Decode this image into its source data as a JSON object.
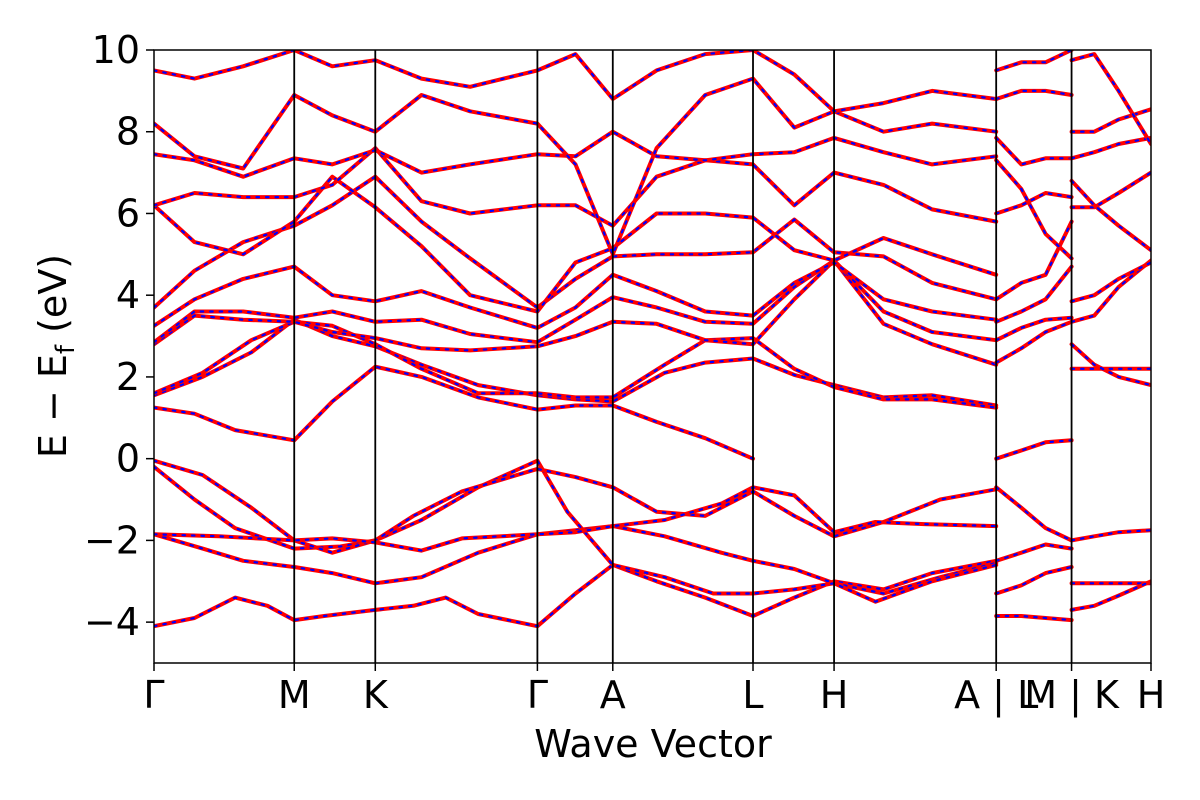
{
  "chart_data": {
    "type": "line",
    "xlabel": "Wave Vector",
    "ylabel_parts": [
      "E − E",
      "f",
      " (eV)"
    ],
    "ylim": [
      -5,
      10
    ],
    "yticks": [
      -4,
      -2,
      0,
      2,
      4,
      6,
      8,
      10
    ],
    "ytick_labels": [
      "−4",
      "−2",
      "0",
      "2",
      "4",
      "6",
      "8",
      "10"
    ],
    "xlim": [
      0,
      12.3
    ],
    "kpoints": [
      {
        "label": "Γ",
        "x": 0
      },
      {
        "label": "M",
        "x": 1.73
      },
      {
        "label": "K",
        "x": 2.73
      },
      {
        "label": "Γ",
        "x": 4.73
      },
      {
        "label": "A",
        "x": 5.66
      },
      {
        "label": "L",
        "x": 7.39
      },
      {
        "label": "H",
        "x": 8.39
      },
      {
        "label": "A | L",
        "x": 10.39
      },
      {
        "label": "M | K",
        "x": 11.32
      },
      {
        "label": "H",
        "x": 12.3
      }
    ],
    "series_colors": {
      "solid": "#ff0000",
      "dashed": "#0000ff"
    },
    "bands": [
      {
        "x": [
          0,
          0.5,
          1.0,
          1.4,
          1.73,
          2.1,
          2.73,
          3.2,
          3.6,
          4.0,
          4.73,
          5.2,
          5.66,
          6.2,
          6.8,
          7.39,
          7.9,
          8.39,
          9.0,
          9.6,
          10.39
        ],
        "y": [
          -4.1,
          -3.9,
          -3.4,
          -3.6,
          -3.95,
          -3.85,
          -3.7,
          -3.6,
          -3.4,
          -3.8,
          -4.1,
          -3.3,
          -2.6,
          -3.0,
          -3.4,
          -3.85,
          -3.4,
          -3.0,
          -3.2,
          -2.8,
          -2.5
        ]
      },
      {
        "x": [
          0,
          0.6,
          1.1,
          1.73,
          2.2,
          2.73,
          3.3,
          4.0,
          4.73,
          5.2,
          5.66,
          6.3,
          7.0,
          7.39,
          7.9,
          8.39,
          9.0,
          9.7,
          10.39
        ],
        "y": [
          -1.85,
          -2.2,
          -2.5,
          -2.65,
          -2.8,
          -3.05,
          -2.9,
          -2.3,
          -1.85,
          -1.75,
          -1.65,
          -1.9,
          -2.3,
          -2.5,
          -2.7,
          -3.05,
          -3.3,
          -2.9,
          -2.55
        ]
      },
      {
        "x": [
          0,
          0.5,
          1.0,
          1.73,
          2.3,
          2.73,
          3.3,
          4.0,
          4.73,
          5.1,
          5.66,
          6.3,
          6.9,
          7.39,
          7.9,
          8.39,
          8.9,
          9.6,
          10.39
        ],
        "y": [
          -0.2,
          -1.0,
          -1.7,
          -2.2,
          -2.15,
          -2.0,
          -1.5,
          -0.7,
          -0.05,
          -1.3,
          -2.6,
          -2.9,
          -3.3,
          -3.3,
          -3.2,
          -3.05,
          -3.5,
          -3.0,
          -2.6
        ]
      },
      {
        "x": [
          0,
          0.6,
          1.2,
          1.73,
          2.2,
          2.73,
          3.2,
          3.8,
          4.73,
          5.2,
          5.66,
          6.2,
          6.8,
          7.39,
          7.9,
          8.39,
          9.0,
          9.7,
          10.39
        ],
        "y": [
          -0.05,
          -0.4,
          -1.2,
          -2.0,
          -2.3,
          -2.0,
          -1.4,
          -0.8,
          -0.25,
          -0.45,
          -0.7,
          -1.3,
          -1.4,
          -0.8,
          -1.4,
          -1.9,
          -1.55,
          -1.0,
          -0.75
        ]
      },
      {
        "x": [
          0,
          0.8,
          1.73,
          2.2,
          2.73,
          3.3,
          3.8,
          4.73,
          5.2,
          5.66,
          6.3,
          7.0,
          7.39,
          7.9,
          8.39,
          8.9,
          9.5,
          10.39
        ],
        "y": [
          -1.85,
          -1.9,
          -2.0,
          -1.95,
          -2.05,
          -2.25,
          -1.95,
          -1.85,
          -1.8,
          -1.65,
          -1.5,
          -1.1,
          -0.7,
          -0.9,
          -1.8,
          -1.55,
          -1.6,
          -1.65
        ]
      },
      {
        "x": [
          0,
          0.5,
          1.0,
          1.73,
          2.2,
          2.73,
          3.3,
          4.0,
          4.73,
          5.2,
          5.66,
          6.2,
          6.8,
          7.39
        ],
        "y": [
          1.25,
          1.1,
          0.7,
          0.45,
          1.4,
          2.25,
          2.0,
          1.5,
          1.2,
          1.3,
          1.3,
          0.9,
          0.5,
          0.0
        ]
      },
      {
        "x": [
          0,
          0.6,
          1.2,
          1.73,
          2.2,
          2.73,
          3.3,
          4.0,
          4.73,
          5.2,
          5.66,
          6.3,
          6.8,
          7.39,
          7.9,
          8.39,
          9.0,
          9.6,
          10.39
        ],
        "y": [
          1.55,
          2.0,
          2.6,
          3.4,
          3.0,
          2.75,
          2.3,
          1.8,
          1.55,
          1.45,
          1.4,
          2.1,
          2.35,
          2.45,
          2.05,
          1.8,
          1.5,
          1.55,
          1.3
        ]
      },
      {
        "x": [
          0,
          0.6,
          1.2,
          1.73,
          2.2,
          2.73,
          3.3,
          4.0,
          4.73,
          5.2,
          5.66,
          6.3,
          6.8,
          7.39,
          7.9,
          8.39,
          9.0,
          9.6,
          10.39
        ],
        "y": [
          1.6,
          2.1,
          2.9,
          3.35,
          3.25,
          2.8,
          2.2,
          1.6,
          1.6,
          1.5,
          1.5,
          2.3,
          2.9,
          2.95,
          2.2,
          1.75,
          1.45,
          1.45,
          1.25
        ]
      },
      {
        "x": [
          0,
          0.5,
          1.1,
          1.73,
          2.2,
          2.73,
          3.3,
          3.9,
          4.73,
          5.2,
          5.66,
          6.2,
          6.8,
          7.39,
          7.9,
          8.39,
          9.0,
          9.6,
          10.39
        ],
        "y": [
          2.8,
          3.5,
          3.4,
          3.35,
          3.1,
          2.95,
          2.7,
          2.65,
          2.75,
          3.0,
          3.35,
          3.3,
          2.9,
          2.8,
          3.9,
          4.85,
          3.3,
          2.8,
          2.3
        ]
      },
      {
        "x": [
          0,
          0.5,
          1.1,
          1.73,
          2.2,
          2.73,
          3.3,
          3.9,
          4.73,
          5.2,
          5.66,
          6.2,
          6.8,
          7.39,
          7.9,
          8.39,
          9.0,
          9.6,
          10.39
        ],
        "y": [
          2.85,
          3.6,
          3.6,
          3.45,
          3.6,
          3.35,
          3.4,
          3.05,
          2.85,
          3.4,
          3.95,
          3.7,
          3.35,
          3.3,
          4.2,
          4.85,
          3.6,
          3.1,
          2.9
        ]
      },
      {
        "x": [
          0,
          0.5,
          1.1,
          1.73,
          2.2,
          2.73,
          3.3,
          3.9,
          4.73,
          5.2,
          5.66,
          6.2,
          6.8,
          7.39,
          7.9,
          8.39,
          9.0,
          9.6,
          10.39
        ],
        "y": [
          3.25,
          3.9,
          4.4,
          4.7,
          4.0,
          3.85,
          4.1,
          3.7,
          3.2,
          3.7,
          4.5,
          4.1,
          3.6,
          3.5,
          4.3,
          4.8,
          3.9,
          3.6,
          3.4
        ]
      },
      {
        "x": [
          0,
          0.5,
          1.1,
          1.73,
          2.2,
          2.73,
          3.3,
          3.9,
          4.73,
          5.2,
          5.66,
          6.2,
          6.8,
          7.39,
          7.9,
          8.39,
          9.0,
          9.6,
          10.39
        ],
        "y": [
          3.7,
          4.6,
          5.3,
          5.7,
          6.2,
          6.9,
          5.8,
          4.9,
          3.7,
          4.4,
          4.95,
          5.0,
          5.0,
          5.05,
          5.85,
          5.05,
          4.95,
          4.3,
          3.9
        ]
      },
      {
        "x": [
          0,
          0.5,
          1.1,
          1.73,
          2.2,
          2.73,
          3.3,
          3.9,
          4.73,
          5.2,
          5.66,
          6.2,
          6.8,
          7.39,
          7.9,
          8.39,
          9.0,
          9.6,
          10.39
        ],
        "y": [
          6.2,
          5.3,
          5.0,
          5.8,
          6.9,
          6.15,
          5.2,
          4.0,
          3.6,
          4.8,
          5.15,
          6.0,
          6.0,
          5.9,
          5.1,
          4.85,
          5.4,
          5.0,
          4.5
        ]
      },
      {
        "x": [
          0,
          0.5,
          1.1,
          1.73,
          2.2,
          2.73,
          3.3,
          3.9,
          4.73,
          5.2,
          5.66,
          6.2,
          6.8,
          7.39,
          7.9,
          8.39,
          9.0,
          9.6,
          10.39
        ],
        "y": [
          6.2,
          6.5,
          6.4,
          6.4,
          6.7,
          7.6,
          6.3,
          6.0,
          6.2,
          6.2,
          5.7,
          6.9,
          7.3,
          7.2,
          6.2,
          7.0,
          6.7,
          6.1,
          5.8
        ]
      },
      {
        "x": [
          0,
          0.5,
          1.1,
          1.73,
          2.2,
          2.73,
          3.3,
          3.9,
          4.73,
          5.2,
          5.66,
          6.2,
          6.8,
          7.39,
          7.9,
          8.39,
          9.0,
          9.6,
          10.39
        ],
        "y": [
          7.45,
          7.3,
          6.9,
          7.35,
          7.2,
          7.55,
          7.0,
          7.2,
          7.45,
          7.4,
          8.0,
          7.4,
          7.3,
          7.45,
          7.5,
          7.85,
          7.5,
          7.2,
          7.4
        ]
      },
      {
        "x": [
          0,
          0.5,
          1.1,
          1.73,
          2.2,
          2.73,
          3.3,
          3.9,
          4.73,
          5.2,
          5.66,
          6.2,
          6.8,
          7.39,
          7.9,
          8.39,
          9.0,
          9.6,
          10.39
        ],
        "y": [
          8.2,
          7.4,
          7.1,
          8.9,
          8.4,
          8.0,
          8.9,
          8.5,
          8.2,
          7.2,
          5.0,
          7.6,
          8.9,
          9.3,
          8.1,
          8.5,
          8.0,
          8.2,
          8.0
        ]
      },
      {
        "x": [
          0,
          0.5,
          1.1,
          1.73,
          2.2,
          2.73,
          3.3,
          3.9,
          4.73,
          5.2,
          5.66,
          6.2,
          6.8,
          7.39,
          7.9,
          8.39,
          9.0,
          9.6,
          10.39
        ],
        "y": [
          9.5,
          9.3,
          9.6,
          10.0,
          9.6,
          9.75,
          9.3,
          9.1,
          9.5,
          9.9,
          8.8,
          9.5,
          9.9,
          10.0,
          9.4,
          8.5,
          8.7,
          9.0,
          8.8
        ]
      },
      {
        "x": [
          10.39,
          10.7,
          11.0,
          11.32
        ],
        "y": [
          0.0,
          0.2,
          0.4,
          0.45
        ]
      },
      {
        "x": [
          10.39,
          10.7,
          11.0,
          11.32
        ],
        "y": [
          -0.7,
          -1.2,
          -1.7,
          -2.0
        ]
      },
      {
        "x": [
          10.39,
          10.7,
          11.0,
          11.32
        ],
        "y": [
          -2.5,
          -2.3,
          -2.1,
          -2.2
        ]
      },
      {
        "x": [
          10.39,
          10.7,
          11.0,
          11.32
        ],
        "y": [
          -3.3,
          -3.1,
          -2.8,
          -2.65
        ]
      },
      {
        "x": [
          10.39,
          10.7,
          11.0,
          11.32
        ],
        "y": [
          -3.85,
          -3.85,
          -3.9,
          -3.95
        ]
      },
      {
        "x": [
          10.39,
          10.7,
          11.0,
          11.32
        ],
        "y": [
          2.35,
          2.7,
          3.1,
          3.35
        ]
      },
      {
        "x": [
          10.39,
          10.7,
          11.0,
          11.32
        ],
        "y": [
          2.9,
          3.2,
          3.4,
          3.45
        ]
      },
      {
        "x": [
          10.39,
          10.7,
          11.0,
          11.32
        ],
        "y": [
          3.35,
          3.6,
          3.9,
          4.7
        ]
      },
      {
        "x": [
          10.39,
          10.7,
          11.0,
          11.32
        ],
        "y": [
          3.9,
          4.3,
          4.5,
          5.8
        ]
      },
      {
        "x": [
          10.39,
          10.7,
          11.0,
          11.32
        ],
        "y": [
          6.0,
          6.2,
          6.5,
          6.4
        ]
      },
      {
        "x": [
          10.39,
          10.7,
          11.0,
          11.32
        ],
        "y": [
          7.3,
          6.6,
          5.5,
          4.9
        ]
      },
      {
        "x": [
          10.39,
          10.7,
          11.0,
          11.32
        ],
        "y": [
          7.85,
          7.2,
          7.35,
          7.35
        ]
      },
      {
        "x": [
          10.39,
          10.7,
          11.0,
          11.32
        ],
        "y": [
          8.8,
          9.0,
          9.0,
          8.9
        ]
      },
      {
        "x": [
          10.39,
          10.7,
          11.0,
          11.32
        ],
        "y": [
          9.5,
          9.7,
          9.7,
          10.0
        ]
      },
      {
        "x": [
          11.32,
          11.6,
          11.9,
          12.3
        ],
        "y": [
          -2.0,
          -1.9,
          -1.8,
          -1.75
        ]
      },
      {
        "x": [
          11.32,
          11.6,
          11.9,
          12.3
        ],
        "y": [
          -3.05,
          -3.05,
          -3.05,
          -3.05
        ]
      },
      {
        "x": [
          11.32,
          11.6,
          11.9,
          12.3
        ],
        "y": [
          -3.7,
          -3.6,
          -3.35,
          -3.0
        ]
      },
      {
        "x": [
          11.32,
          11.6,
          11.9,
          12.3
        ],
        "y": [
          2.2,
          2.2,
          2.2,
          2.2
        ]
      },
      {
        "x": [
          11.32,
          11.6,
          11.9,
          12.3
        ],
        "y": [
          2.8,
          2.3,
          2.0,
          1.8
        ]
      },
      {
        "x": [
          11.32,
          11.6,
          11.9,
          12.3
        ],
        "y": [
          3.35,
          3.5,
          4.2,
          4.85
        ]
      },
      {
        "x": [
          11.32,
          11.6,
          11.9,
          12.3
        ],
        "y": [
          3.85,
          4.0,
          4.4,
          4.8
        ]
      },
      {
        "x": [
          11.32,
          11.6,
          11.9,
          12.3
        ],
        "y": [
          6.15,
          6.15,
          6.5,
          7.0
        ]
      },
      {
        "x": [
          11.32,
          11.6,
          11.9,
          12.3
        ],
        "y": [
          6.8,
          6.2,
          5.7,
          5.1
        ]
      },
      {
        "x": [
          11.32,
          11.6,
          11.9,
          12.3
        ],
        "y": [
          7.35,
          7.5,
          7.7,
          7.85
        ]
      },
      {
        "x": [
          11.32,
          11.6,
          11.9,
          12.3
        ],
        "y": [
          8.0,
          8.0,
          8.3,
          8.55
        ]
      },
      {
        "x": [
          11.32,
          11.6,
          11.9,
          12.3
        ],
        "y": [
          9.75,
          9.9,
          9.0,
          7.7
        ]
      }
    ]
  }
}
